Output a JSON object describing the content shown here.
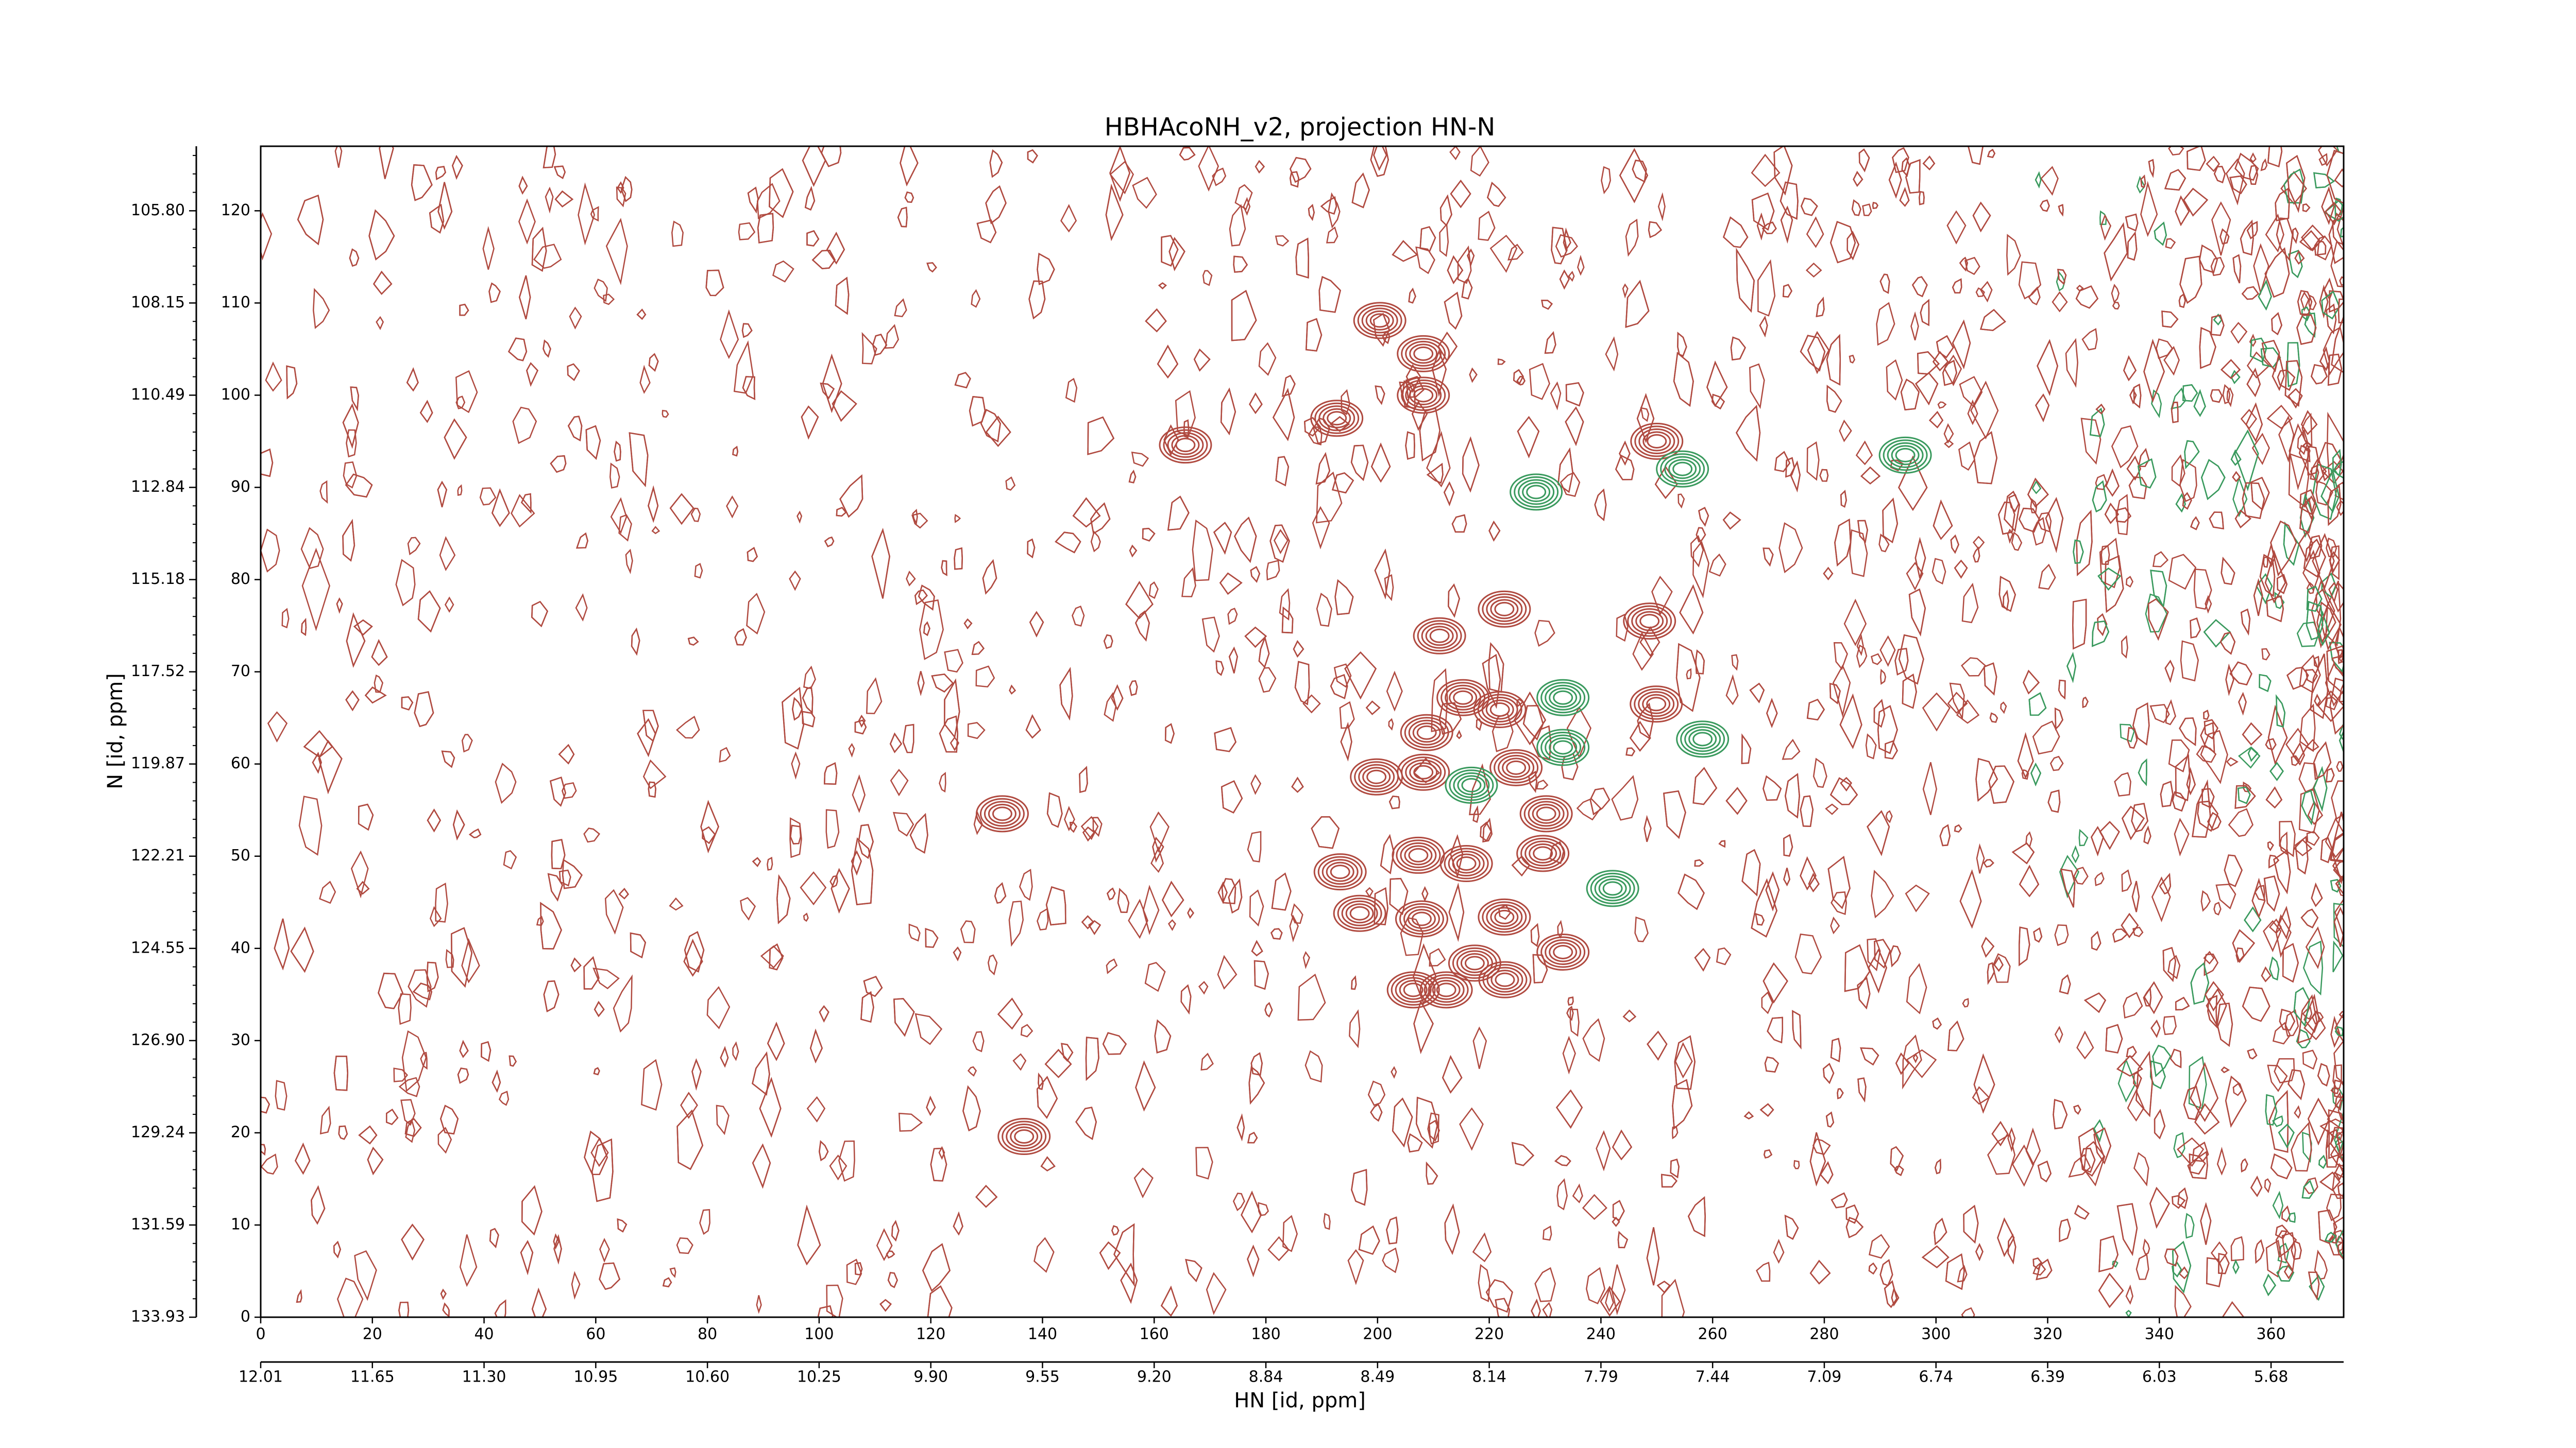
{
  "chart_data": {
    "type": "contour",
    "title": "HBHAcoNH_v2, projection HN-N",
    "xlabel": "HN [id, ppm]",
    "ylabel": "N [id, ppm]",
    "xlim": [
      0,
      373
    ],
    "ylim": [
      0,
      127
    ],
    "xticks": [
      0,
      20,
      40,
      60,
      80,
      100,
      120,
      140,
      160,
      180,
      200,
      220,
      240,
      260,
      280,
      300,
      320,
      340,
      360
    ],
    "yticks": [
      0,
      10,
      20,
      30,
      40,
      50,
      60,
      70,
      80,
      90,
      100,
      110,
      120
    ],
    "x2ticks": [
      {
        "value": 0,
        "label": "12.01"
      },
      {
        "value": 20,
        "label": "11.65"
      },
      {
        "value": 40,
        "label": "11.30"
      },
      {
        "value": 60,
        "label": "10.95"
      },
      {
        "value": 80,
        "label": "10.60"
      },
      {
        "value": 100,
        "label": "10.25"
      },
      {
        "value": 120,
        "label": "9.90"
      },
      {
        "value": 140,
        "label": "9.55"
      },
      {
        "value": 160,
        "label": "9.20"
      },
      {
        "value": 180,
        "label": "8.84"
      },
      {
        "value": 200,
        "label": "8.49"
      },
      {
        "value": 220,
        "label": "8.14"
      },
      {
        "value": 240,
        "label": "7.79"
      },
      {
        "value": 260,
        "label": "7.44"
      },
      {
        "value": 280,
        "label": "7.09"
      },
      {
        "value": 300,
        "label": "6.74"
      },
      {
        "value": 320,
        "label": "6.39"
      },
      {
        "value": 340,
        "label": "6.03"
      },
      {
        "value": 360,
        "label": "5.68"
      }
    ],
    "y2ticks": [
      {
        "value": 0,
        "label": "133.93"
      },
      {
        "value": 10,
        "label": "131.59"
      },
      {
        "value": 20,
        "label": "129.24"
      },
      {
        "value": 30,
        "label": "126.90"
      },
      {
        "value": 40,
        "label": "124.55"
      },
      {
        "value": 50,
        "label": "122.21"
      },
      {
        "value": 60,
        "label": "119.87"
      },
      {
        "value": 70,
        "label": "117.52"
      },
      {
        "value": 80,
        "label": "115.18"
      },
      {
        "value": 90,
        "label": "112.84"
      },
      {
        "value": 100,
        "label": "110.49"
      },
      {
        "value": 110,
        "label": "108.15"
      },
      {
        "value": 120,
        "label": "105.80"
      }
    ],
    "series": [
      {
        "color": "#b04a40",
        "x": [
          200.4,
          208.2,
          208.2,
          192.7,
          250,
          222.7,
          211.1,
          215.3,
          221.9,
          208.8,
          199.8,
          208.2,
          224.8,
          230.2,
          229.6,
          215.9,
          207.3,
          193.3,
          196.8,
          207.9,
          222.7,
          233.2,
          217.4,
          222.8,
          206.4,
          212.3,
          132.8,
          249.9,
          165.6,
          248.7,
          136.7
        ],
        "y": [
          108.1,
          104.5,
          100,
          97.5,
          95,
          76.8,
          73.9,
          67.2,
          65.9,
          63.4,
          58.6,
          59.1,
          59.6,
          54.6,
          50.3,
          49.2,
          50.1,
          48.3,
          43.8,
          43.2,
          43.4,
          39.6,
          38.4,
          36.6,
          35.5,
          35.5,
          54.6,
          66.5,
          94.6,
          75.5,
          19.6
        ]
      },
      {
        "color": "#3a9a5e",
        "x": [
          228.4,
          254.6,
          294.5,
          233.2,
          233.2,
          216.8,
          242.1,
          258.2
        ],
        "y": [
          89.5,
          92,
          93.5,
          67.2,
          61.8,
          57.7,
          46.5,
          62.7
        ]
      }
    ]
  }
}
